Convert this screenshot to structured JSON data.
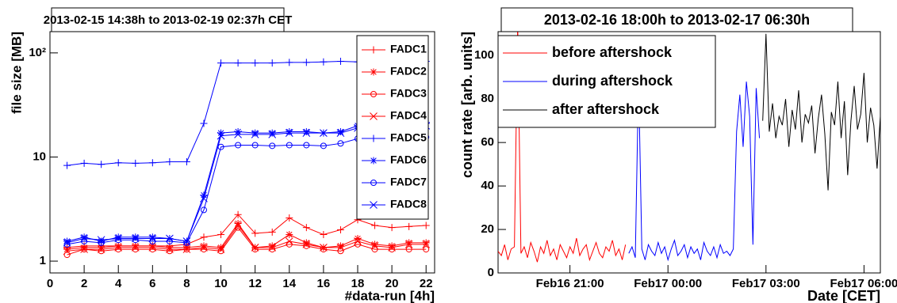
{
  "chart_data": [
    {
      "type": "line",
      "title": "2013-02-15 14:38h to 2013-02-19 02:37h CET",
      "x_label": "#data-run [4h]",
      "y_label": "file size [MB]",
      "log_y": true,
      "grid": false,
      "legend": "upper right",
      "xlim": [
        0,
        22.5
      ],
      "xticks": [
        0,
        2,
        4,
        6,
        8,
        10,
        12,
        14,
        16,
        18,
        20,
        22
      ],
      "ylim": [
        0.77,
        160
      ],
      "yticks": [
        1,
        10,
        {
          "value": 100,
          "label": "10²"
        }
      ],
      "x": [
        1,
        2,
        3,
        4,
        5,
        6,
        7,
        8,
        9,
        10,
        11,
        12,
        13,
        14,
        15,
        16,
        17,
        18,
        19,
        20,
        21,
        22
      ],
      "series": [
        {
          "name": "FADC1",
          "color": "#ff0000",
          "marker": "plus",
          "values": [
            1.35,
            1.4,
            1.4,
            1.4,
            1.4,
            1.4,
            1.4,
            1.45,
            1.7,
            1.8,
            2.8,
            1.85,
            1.9,
            2.6,
            2.1,
            1.8,
            2.0,
            2.5,
            2.2,
            2.1,
            2.15,
            2.2
          ]
        },
        {
          "name": "FADC2",
          "color": "#ff0000",
          "marker": "star",
          "values": [
            1.3,
            1.35,
            1.35,
            1.4,
            1.4,
            1.4,
            1.35,
            1.35,
            1.4,
            1.35,
            2.3,
            1.35,
            1.4,
            1.8,
            1.5,
            1.35,
            1.4,
            1.65,
            1.45,
            1.4,
            1.5,
            1.5
          ]
        },
        {
          "name": "FADC3",
          "color": "#ff0000",
          "marker": "circle",
          "values": [
            1.15,
            1.3,
            1.25,
            1.3,
            1.3,
            1.3,
            1.25,
            1.3,
            1.3,
            1.25,
            2.1,
            1.3,
            1.3,
            1.45,
            1.4,
            1.3,
            1.25,
            1.45,
            1.3,
            1.3,
            1.3,
            1.3
          ]
        },
        {
          "name": "FADC4",
          "color": "#ff0000",
          "marker": "cross",
          "values": [
            1.25,
            1.3,
            1.3,
            1.35,
            1.35,
            1.35,
            1.3,
            1.3,
            1.35,
            1.3,
            2.2,
            1.35,
            1.35,
            1.55,
            1.45,
            1.35,
            1.35,
            1.55,
            1.4,
            1.35,
            1.45,
            1.45
          ]
        },
        {
          "name": "FADC5",
          "color": "#0000ff",
          "marker": "plus",
          "values": [
            8.3,
            8.7,
            8.5,
            8.8,
            8.7,
            8.8,
            9.0,
            9.0,
            21,
            80,
            80,
            80,
            80,
            81,
            81,
            82,
            83,
            82,
            82,
            82,
            83,
            83
          ]
        },
        {
          "name": "FADC6",
          "color": "#0000ff",
          "marker": "star",
          "values": [
            1.55,
            1.7,
            1.55,
            1.7,
            1.7,
            1.7,
            1.65,
            1.55,
            4.3,
            17,
            17.5,
            17,
            17,
            17.5,
            17.5,
            17,
            17.5,
            20,
            20,
            20,
            21,
            21
          ]
        },
        {
          "name": "FADC7",
          "color": "#0000ff",
          "marker": "circle",
          "values": [
            1.45,
            1.55,
            1.5,
            1.6,
            1.6,
            1.55,
            1.55,
            1.5,
            3.1,
            12.5,
            13,
            13,
            12.8,
            13,
            13,
            12.8,
            13.5,
            15,
            15,
            15,
            15.5,
            15.5
          ]
        },
        {
          "name": "FADC8",
          "color": "#0000ff",
          "marker": "cross",
          "values": [
            1.5,
            1.65,
            1.6,
            1.65,
            1.65,
            1.65,
            1.65,
            1.55,
            4.0,
            16,
            16.5,
            16.5,
            16.5,
            17,
            17,
            17,
            17,
            19,
            19,
            19,
            20,
            20
          ]
        }
      ]
    },
    {
      "type": "line",
      "title": "2013-02-16 18:00h to 2013-02-17 06:30h",
      "x_label": "Date [CET]",
      "y_label": "count rate [arb. units]",
      "log_y": false,
      "grid": false,
      "legend": "upper left",
      "xlim": [
        18.8,
        30.5
      ],
      "xticks": [
        {
          "value": 21,
          "label": "Feb16 21:00"
        },
        {
          "value": 24,
          "label": "Feb17 00:00"
        },
        {
          "value": 27,
          "label": "Feb17 03:00"
        },
        {
          "value": 30,
          "label": "Feb17 06:00"
        }
      ],
      "ylim": [
        0,
        111
      ],
      "yticks": [
        0,
        20,
        40,
        60,
        80,
        100
      ],
      "series": [
        {
          "name": "before aftershock",
          "color": "#ff0000",
          "x": [
            18.8,
            18.9,
            19.0,
            19.1,
            19.2,
            19.3,
            19.4,
            19.5,
            19.6,
            19.7,
            19.8,
            19.9,
            20.0,
            20.1,
            20.2,
            20.3,
            20.4,
            20.5,
            20.6,
            20.7,
            20.8,
            20.9,
            21.0,
            21.1,
            21.2,
            21.3,
            21.4,
            21.5,
            21.6,
            21.7,
            21.8,
            21.9,
            22.0,
            22.1,
            22.2,
            22.3,
            22.4,
            22.5,
            22.6,
            22.7
          ],
          "values": [
            10,
            8,
            13,
            6,
            11,
            12,
            115,
            9,
            12,
            7,
            14,
            10,
            5,
            12,
            9,
            15,
            8,
            11,
            6,
            13,
            10,
            7,
            12,
            9,
            16,
            8,
            11,
            13,
            6,
            10,
            14,
            9,
            7,
            12,
            10,
            15,
            8,
            11,
            6,
            13
          ]
        },
        {
          "name": "during aftershock",
          "color": "#0000ff",
          "x": [
            22.8,
            22.9,
            23.0,
            23.1,
            23.2,
            23.3,
            23.4,
            23.5,
            23.6,
            23.7,
            23.8,
            23.9,
            24.0,
            24.1,
            24.2,
            24.3,
            24.4,
            24.5,
            24.6,
            24.7,
            24.8,
            24.9,
            25.0,
            25.1,
            25.2,
            25.3,
            25.4,
            25.5,
            25.6,
            25.7,
            25.8,
            25.9,
            26.0,
            26.1,
            26.2,
            26.3,
            26.4,
            26.5,
            26.6,
            26.7,
            26.8
          ],
          "values": [
            9,
            12,
            7,
            90,
            11,
            6,
            13,
            10,
            8,
            14,
            9,
            12,
            6,
            11,
            15,
            8,
            10,
            13,
            7,
            12,
            9,
            11,
            6,
            14,
            10,
            8,
            12,
            7,
            13,
            9,
            10,
            8,
            11,
            65,
            82,
            58,
            88,
            72,
            13,
            85,
            62
          ]
        },
        {
          "name": "after aftershock",
          "color": "#000000",
          "x": [
            26.9,
            27.0,
            27.1,
            27.2,
            27.3,
            27.4,
            27.5,
            27.6,
            27.7,
            27.8,
            27.9,
            28.0,
            28.1,
            28.2,
            28.3,
            28.4,
            28.5,
            28.6,
            28.7,
            28.8,
            28.9,
            29.0,
            29.1,
            29.2,
            29.3,
            29.4,
            29.5,
            29.6,
            29.7,
            29.8,
            29.9,
            30.0,
            30.1,
            30.2,
            30.3,
            30.4,
            30.5
          ],
          "values": [
            70,
            110,
            65,
            78,
            62,
            72,
            68,
            80,
            58,
            75,
            66,
            84,
            60,
            73,
            69,
            77,
            55,
            71,
            82,
            64,
            38,
            74,
            68,
            88,
            62,
            79,
            45,
            70,
            86,
            66,
            73,
            92,
            60,
            76,
            68,
            48,
            72
          ]
        }
      ]
    }
  ]
}
